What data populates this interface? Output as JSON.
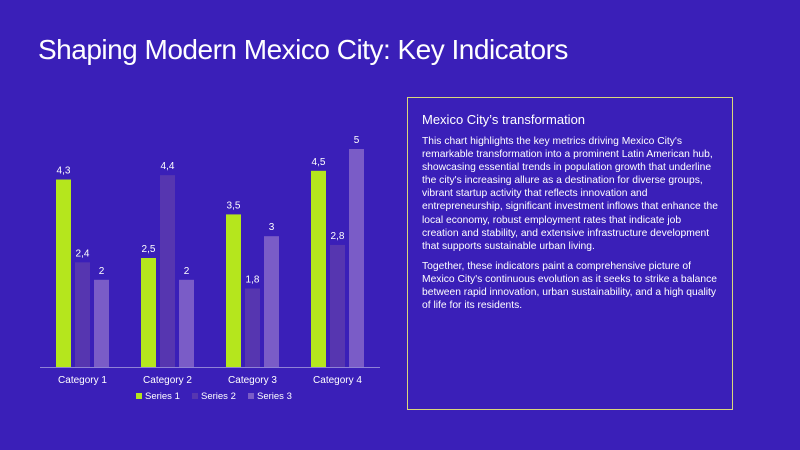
{
  "page": {
    "title": "Shaping Modern Mexico City: Key Indicators"
  },
  "panel": {
    "heading": "Mexico City’s transformation",
    "paragraph1": "This chart highlights the key metrics driving Mexico City's remarkable transformation into a prominent Latin American hub, showcasing essential trends in population growth that underline the city's increasing allure as a destination for diverse groups, vibrant startup activity that reflects innovation and entrepreneurship, significant investment inflows that enhance the local economy, robust employment rates that indicate job creation and stability, and extensive infrastructure development that supports sustainable urban living.",
    "paragraph2": "Together, these indicators paint a comprehensive picture of Mexico City's continuous evolution as it seeks to strike a balance between rapid innovation, urban sustainability, and a high quality of life for its residents.",
    "border_color": "#d9d77a"
  },
  "colors": {
    "background": "#3a1fb8",
    "series1": "#b5e61d",
    "series2": "#5636b0",
    "series3": "#7a5cc7",
    "axis": "#8f82d6"
  },
  "chart_data": {
    "type": "bar",
    "categories": [
      "Category 1",
      "Category 2",
      "Category 3",
      "Category 4"
    ],
    "series": [
      {
        "name": "Series 1",
        "values": [
          4.3,
          2.5,
          3.5,
          4.5
        ],
        "labels": [
          "4,3",
          "2,5",
          "3,5",
          "4,5"
        ]
      },
      {
        "name": "Series 2",
        "values": [
          2.4,
          4.4,
          1.8,
          2.8
        ],
        "labels": [
          "2,4",
          "4,4",
          "1,8",
          "2,8"
        ]
      },
      {
        "name": "Series 3",
        "values": [
          2,
          2,
          3,
          5
        ],
        "labels": [
          "2",
          "2",
          "3",
          "5"
        ]
      }
    ],
    "ylim": [
      0,
      5
    ],
    "grid": false,
    "legend": "bottom",
    "title": "",
    "xlabel": "",
    "ylabel": ""
  }
}
